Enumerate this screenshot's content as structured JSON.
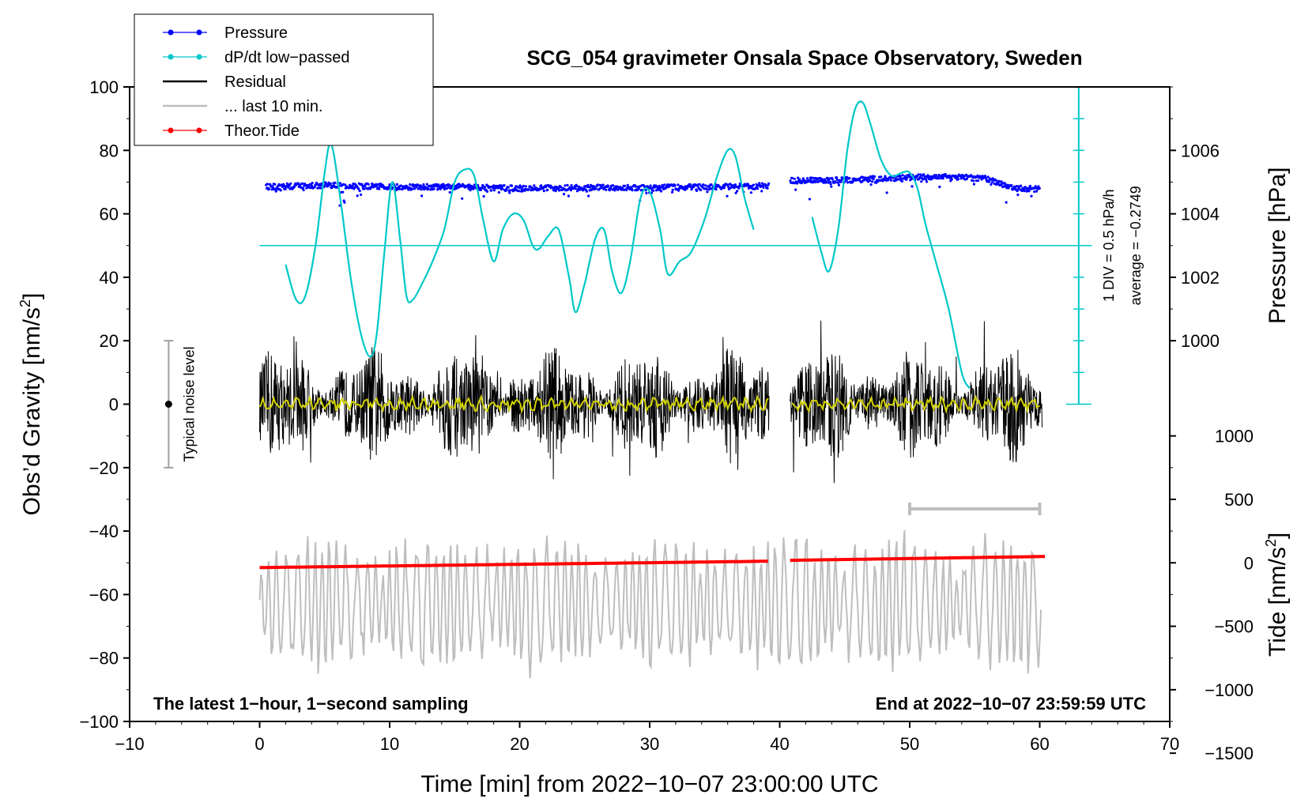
{
  "chart_data": {
    "type": "line",
    "title": "SCG_054 gravimeter Onsala Space Observatory, Sweden",
    "xlabel": "Time [min] from 2022−10−07 23:00:00 UTC",
    "ylabel": "Obs’d Gravity [nm/s",
    "ylabel_sup": "2",
    "ylabel_end": "]",
    "xlim": [
      -10,
      70
    ],
    "ylim": [
      -100,
      100
    ],
    "x_ticks": [
      -10,
      0,
      10,
      20,
      30,
      40,
      50,
      60,
      70
    ],
    "x_tick_labels": [
      "−10",
      "0",
      "10",
      "20",
      "30",
      "40",
      "50",
      "60",
      "70"
    ],
    "y_ticks": [
      -100,
      -80,
      -60,
      -40,
      -20,
      0,
      20,
      40,
      60,
      80,
      100
    ],
    "y_tick_labels": [
      "−100",
      "−80",
      "−60",
      "−40",
      "−20",
      "0",
      "20",
      "40",
      "60",
      "80",
      "100"
    ],
    "pressure_axis": {
      "label": "Pressure [hPa]",
      "ticks": [
        1000,
        1002,
        1004,
        1006
      ],
      "tick_labels": [
        "1000",
        "1002",
        "1004",
        "1006"
      ],
      "gravity_at_1000": 20,
      "gravity_per_hpa": 10
    },
    "tide_axis": {
      "label": "Tide [nm/s",
      "label_sup": "2",
      "label_end": "]",
      "ticks": [
        1000,
        500,
        0,
        -500,
        -1000,
        -1500
      ],
      "tick_labels": [
        "1000",
        "500",
        "0",
        "−500",
        "−1000",
        "−1500"
      ],
      "gravity_at_0": -50,
      "gravity_per_unit": 0.04
    },
    "legend": [
      {
        "label": "Pressure",
        "color": "#0000ff",
        "style": "line-dot"
      },
      {
        "label": "dP/dt low−passed",
        "color": "#00c8c8",
        "style": "line-dot"
      },
      {
        "label": "Residual",
        "color": "#000000",
        "style": "line"
      },
      {
        "label": "... last 10 min.",
        "color": "#bebebe",
        "style": "line"
      },
      {
        "label": "Theor.Tide",
        "color": "#ff0000",
        "style": "line-dot"
      }
    ],
    "annotations": {
      "bottom_left": "The latest 1−hour, 1−second sampling",
      "bottom_right": "End at 2022−10−07 23:59:59 UTC",
      "noise_label": "Typical noise level",
      "dpdt_scale": "1 DIV = 0.5 hPa/h",
      "dpdt_average": "average = −0.2749"
    },
    "noise_bar": {
      "x": -7,
      "center": 0,
      "low": -20,
      "high": 20
    },
    "dpdt_scale_bar": {
      "x": 63,
      "y_low": 0,
      "y_high": 100,
      "tick_step": 10
    },
    "dpdt_average_line": {
      "x_start": 0,
      "x_end": 64,
      "y": 50
    },
    "last10_bracket": {
      "x_start": 50,
      "x_end": 60,
      "y": -33
    },
    "data_gap": [
      39.2,
      40.8
    ],
    "series": [
      {
        "name": "Pressure",
        "color": "#0000ff",
        "x": [
          0.5,
          5,
          10,
          15,
          20,
          25,
          30,
          35,
          39,
          41,
          45,
          50,
          53,
          56,
          58,
          60
        ],
        "y": [
          68.5,
          69,
          68.5,
          68.5,
          68,
          68.3,
          68.2,
          68.5,
          68.8,
          70.5,
          70.6,
          71.5,
          71.8,
          71,
          68,
          67.8
        ]
      },
      {
        "name": "dP/dt low−passed",
        "color": "#00c8c8",
        "segments": [
          {
            "x": [
              2,
              2.8,
              3.5,
              4.3,
              5,
              5.5,
              6.2,
              7,
              7.8,
              8.5,
              9,
              9.6,
              10.2,
              10.8,
              11.3,
              11.8,
              12.5,
              13.3,
              14.2,
              15,
              15.8,
              16.5,
              17.2,
              18,
              18.7,
              19.5,
              20.3,
              21,
              21.5,
              22.2,
              23,
              23.8,
              24.3,
              25,
              25.8,
              26.5,
              27.1,
              27.8,
              28.5,
              29.3,
              30,
              30.8,
              31.4,
              32.3,
              33.2,
              34.2,
              35.2,
              36,
              36.6,
              37.3,
              38
            ],
            "y": [
              44,
              33,
              34,
              50,
              73,
              82,
              65,
              40,
              22,
              15,
              22,
              48,
              70,
              52,
              34,
              33,
              38,
              45,
              55,
              70,
              74,
              72,
              58,
              45,
              55,
              60,
              58,
              50,
              49,
              53,
              55,
              40,
              29,
              38,
              52,
              55,
              42,
              35,
              45,
              65,
              67,
              55,
              41,
              45,
              48,
              58,
              72,
              80,
              78,
              65,
              55
            ]
          },
          {
            "x": [
              42.5,
              43.2,
              43.8,
              44.5,
              45.2,
              45.8,
              46.4,
              47,
              47.8,
              48.6,
              49.4,
              50,
              50.6,
              51.2,
              52,
              53,
              54,
              54.6
            ],
            "y": [
              59,
              48,
              42,
              55,
              80,
              93,
              95,
              88,
              77,
              72,
              73,
              73,
              68,
              57,
              45,
              30,
              10,
              5
            ]
          }
        ]
      },
      {
        "name": "Residual",
        "color": "#000000",
        "x": [
          0,
          60.2
        ],
        "y": [
          0,
          0
        ]
      },
      {
        "name": "Residual smoothed",
        "color": "#d2d200",
        "x": [
          0,
          10,
          20,
          30,
          39,
          41,
          50,
          60
        ],
        "y": [
          0,
          0,
          0,
          0,
          0,
          0,
          0,
          0
        ]
      },
      {
        "name": "... last 10 min.",
        "color": "#bebebe",
        "x": [
          0,
          60.2
        ],
        "y": [
          -63,
          -63
        ]
      },
      {
        "name": "Theor.Tide",
        "color": "#ff0000",
        "x": [
          0,
          39,
          41,
          60.5
        ],
        "y": [
          -51.5,
          -49.5,
          -49.2,
          -48
        ]
      }
    ]
  }
}
